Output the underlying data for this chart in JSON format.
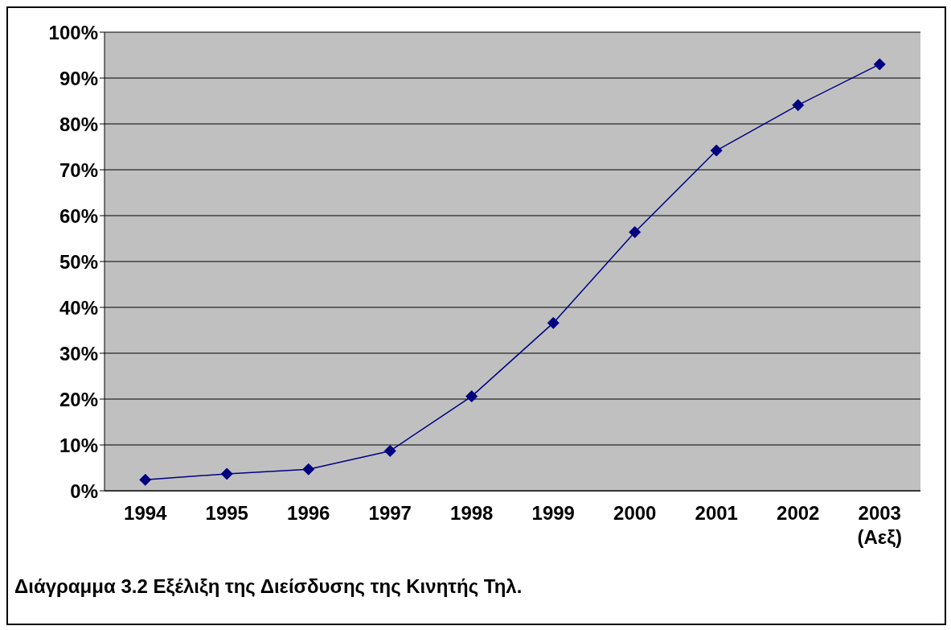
{
  "chart_data": {
    "type": "line",
    "title": "Διάγραμμα 3.2 Εξέλιξη της Διείσδυσης της Κινητής Τηλ.",
    "categories": [
      "1994",
      "1995",
      "1996",
      "1997",
      "1998",
      "1999",
      "2000",
      "2001",
      "2002",
      "2003 (Αεξ)"
    ],
    "series": [
      {
        "color": "#000080",
        "values": [
          2.4,
          3.7,
          4.7,
          8.7,
          20.6,
          36.6,
          56.4,
          74.2,
          84.1,
          93
        ]
      }
    ],
    "ylim": [
      0,
      100
    ],
    "yticks": [
      {
        "value": 0,
        "label": "0%"
      },
      {
        "value": 10,
        "label": "10%"
      },
      {
        "value": 20,
        "label": "20%"
      },
      {
        "value": 30,
        "label": "30%"
      },
      {
        "value": 40,
        "label": "40%"
      },
      {
        "value": 50,
        "label": "50%"
      },
      {
        "value": 60,
        "label": "60%"
      },
      {
        "value": 70,
        "label": "70%"
      },
      {
        "value": 80,
        "label": "80%"
      },
      {
        "value": 90,
        "label": "90%"
      },
      {
        "value": 100,
        "label": "100%"
      }
    ],
    "grid": "y",
    "marker": "diamond",
    "line_style": "solid",
    "legend": false
  }
}
